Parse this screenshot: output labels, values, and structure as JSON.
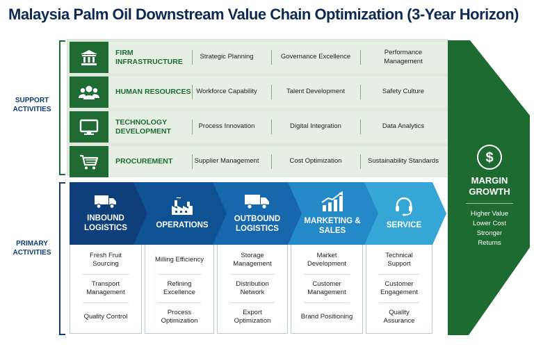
{
  "title": "Malaysia Palm Oil Downstream Value Chain Optimization (3-Year Horizon)",
  "labels": {
    "support": "SUPPORT ACTIVITIES",
    "primary": "PRIMARY ACTIVITIES"
  },
  "support": [
    {
      "icon": "bank-icon",
      "title": "FIRM INFRASTRUCTURE",
      "cells": [
        "Strategic Planning",
        "Governance Excellence",
        "Performance Management"
      ]
    },
    {
      "icon": "people-icon",
      "title": "HUMAN RESOURCES",
      "cells": [
        "Workforce Capability",
        "Talent Development",
        "Safety Culture"
      ]
    },
    {
      "icon": "monitor-icon",
      "title": "TECHNOLOGY DEVELOPMENT",
      "cells": [
        "Process Innovation",
        "Digital Integration",
        "Data Analytics"
      ]
    },
    {
      "icon": "cart-icon",
      "title": "PROCUREMENT",
      "cells": [
        "Supplier Management",
        "Cost Optimization",
        "Sustainability Standards"
      ]
    }
  ],
  "primary": [
    {
      "icon": "truck-icon",
      "title": "INBOUND LOGISTICS",
      "color": "#0e3f7a",
      "items": [
        "Fresh Fruit Sourcing",
        "Transport Management",
        "Quality Control"
      ]
    },
    {
      "icon": "factory-icon",
      "title": "OPERATIONS",
      "color": "#0f5294",
      "items": [
        "Milling Efficiency",
        "Refining Excellence",
        "Process Optimization"
      ]
    },
    {
      "icon": "truck-icon",
      "title": "OUTBOUND LOGISTICS",
      "color": "#1667ac",
      "items": [
        "Storage Management",
        "Distribution Network",
        "Export Optimization"
      ]
    },
    {
      "icon": "growth-chart-icon",
      "title": "MARKETING & SALES",
      "color": "#2489c7",
      "items": [
        "Market Development",
        "Customer Management",
        "Brand Positioning"
      ]
    },
    {
      "icon": "headset-icon",
      "title": "SERVICE",
      "color": "#35a6d6",
      "items": [
        "Technical Support",
        "Customer Engagement",
        "Quality Assurance"
      ]
    }
  ],
  "margin": {
    "icon": "dollar-icon",
    "title": "MARGIN GROWTH",
    "lines": [
      "Higher Value",
      "Lower Cost",
      "Stronger",
      "Returns"
    ]
  },
  "colors": {
    "support_dark": "#1f6b33",
    "support_light": "#e6efe3",
    "margin_green": "#1e6b32",
    "navy": "#0f2a50"
  }
}
